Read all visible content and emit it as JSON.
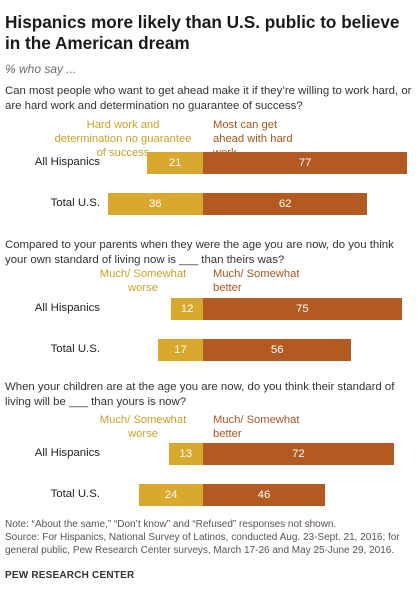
{
  "title": "Hispanics more likely than U.S. public to believe in the American dream",
  "subtitle": "% who say ...",
  "note": "Note: “About the same,” “Don’t know” and “Refused” responses not shown.",
  "source": "Source: For Hispanics, National Survey of Latinos, conducted Aug. 23-Sept. 21, 2016; for general public, Pew Research Center surveys, March 17-26 and May 25-June 29, 2016.",
  "org": "PEW RESEARCH CENTER",
  "colors": {
    "left": "#d9a92f",
    "right": "#b35a22",
    "left_text": "#c8a227",
    "right_text": "#a8561f"
  },
  "chart_data": [
    {
      "type": "bar",
      "question": "Can most people who want to get ahead make it if they’re willing to work hard, or are hard work and determination no guarantee of success?",
      "categories": [
        "All Hispanics",
        "Total U.S."
      ],
      "series": [
        {
          "name": "Hard work and determination no guarantee of success",
          "values": [
            21,
            36
          ]
        },
        {
          "name": "Most can get ahead with hard work",
          "values": [
            77,
            62
          ]
        }
      ]
    },
    {
      "type": "bar",
      "question": "Compared to your parents when they were the age you are now, do you think your own standard of living now is ___ than theirs was?",
      "categories": [
        "All Hispanics",
        "Total U.S."
      ],
      "series": [
        {
          "name": "Much/ Somewhat worse",
          "values": [
            12,
            17
          ]
        },
        {
          "name": "Much/ Somewhat better",
          "values": [
            75,
            56
          ]
        }
      ]
    },
    {
      "type": "bar",
      "question": "When your children are at the age you are now, do you think their standard of living will be ___ than yours is now?",
      "categories": [
        "All Hispanics",
        "Total U.S."
      ],
      "series": [
        {
          "name": "Much/ Somewhat worse",
          "values": [
            13,
            24
          ]
        },
        {
          "name": "Much/ Somewhat better",
          "values": [
            72,
            46
          ]
        }
      ]
    }
  ]
}
